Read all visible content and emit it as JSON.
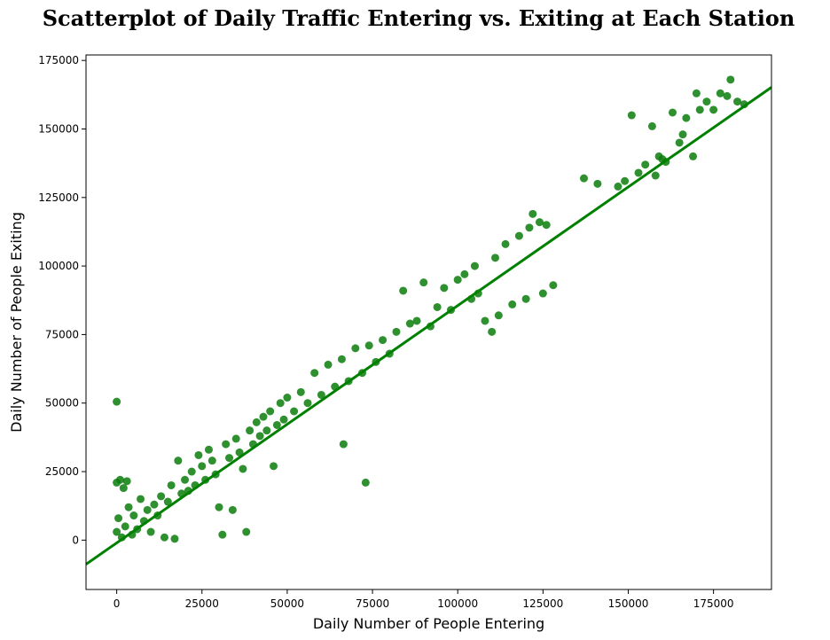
{
  "chart_data": {
    "type": "scatter",
    "title": "Scatterplot of Daily Traffic Entering vs. Exiting at Each Station",
    "xlabel": "Daily Number of People Entering",
    "ylabel": "Daily Number of People Exiting",
    "xlim": [
      -9000,
      192000
    ],
    "ylim": [
      -18000,
      177000
    ],
    "x_ticks": [
      0,
      25000,
      50000,
      75000,
      100000,
      125000,
      150000,
      175000
    ],
    "y_ticks": [
      0,
      25000,
      50000,
      75000,
      100000,
      125000,
      150000,
      175000
    ],
    "grid": false,
    "legend": "none",
    "colors": {
      "points": "#0a7d0a",
      "regression_line": "#008000",
      "axes": "#000000"
    },
    "regression_line": {
      "x": [
        -9000,
        192000
      ],
      "y": [
        -8800,
        165200
      ]
    },
    "series": [
      {
        "values": [
          [
            0,
            50500
          ],
          [
            0,
            21000
          ],
          [
            1000,
            22000
          ],
          [
            2000,
            19000
          ],
          [
            3000,
            21500
          ],
          [
            0,
            3000
          ],
          [
            500,
            8000
          ],
          [
            1500,
            1000
          ],
          [
            2500,
            5000
          ],
          [
            3500,
            12000
          ],
          [
            4500,
            2000
          ],
          [
            5000,
            9000
          ],
          [
            6000,
            4000
          ],
          [
            7000,
            15000
          ],
          [
            8000,
            7000
          ],
          [
            9000,
            11000
          ],
          [
            10000,
            3000
          ],
          [
            11000,
            13000
          ],
          [
            12000,
            9000
          ],
          [
            13000,
            16000
          ],
          [
            14000,
            1000
          ],
          [
            15000,
            14000
          ],
          [
            16000,
            20000
          ],
          [
            17000,
            500
          ],
          [
            18000,
            29000
          ],
          [
            19000,
            17000
          ],
          [
            20000,
            22000
          ],
          [
            21000,
            18000
          ],
          [
            22000,
            25000
          ],
          [
            23000,
            20000
          ],
          [
            24000,
            31000
          ],
          [
            25000,
            27000
          ],
          [
            26000,
            22000
          ],
          [
            27000,
            33000
          ],
          [
            28000,
            29000
          ],
          [
            29000,
            24000
          ],
          [
            30000,
            12000
          ],
          [
            31000,
            2000
          ],
          [
            32000,
            35000
          ],
          [
            33000,
            30000
          ],
          [
            34000,
            11000
          ],
          [
            35000,
            37000
          ],
          [
            36000,
            32000
          ],
          [
            37000,
            26000
          ],
          [
            38000,
            3000
          ],
          [
            39000,
            40000
          ],
          [
            40000,
            35000
          ],
          [
            41000,
            43000
          ],
          [
            42000,
            38000
          ],
          [
            43000,
            45000
          ],
          [
            44000,
            40000
          ],
          [
            45000,
            47000
          ],
          [
            46000,
            27000
          ],
          [
            47000,
            42000
          ],
          [
            48000,
            50000
          ],
          [
            49000,
            44000
          ],
          [
            50000,
            52000
          ],
          [
            52000,
            47000
          ],
          [
            54000,
            54000
          ],
          [
            56000,
            50000
          ],
          [
            58000,
            61000
          ],
          [
            60000,
            53000
          ],
          [
            62000,
            64000
          ],
          [
            64000,
            56000
          ],
          [
            66000,
            66000
          ],
          [
            66500,
            35000
          ],
          [
            68000,
            58000
          ],
          [
            70000,
            70000
          ],
          [
            72000,
            61000
          ],
          [
            73000,
            21000
          ],
          [
            74000,
            71000
          ],
          [
            76000,
            65000
          ],
          [
            78000,
            73000
          ],
          [
            80000,
            68000
          ],
          [
            82000,
            76000
          ],
          [
            84000,
            91000
          ],
          [
            86000,
            79000
          ],
          [
            88000,
            80000
          ],
          [
            90000,
            94000
          ],
          [
            92000,
            78000
          ],
          [
            94000,
            85000
          ],
          [
            96000,
            92000
          ],
          [
            98000,
            84000
          ],
          [
            100000,
            95000
          ],
          [
            102000,
            97000
          ],
          [
            104000,
            88000
          ],
          [
            105000,
            100000
          ],
          [
            106000,
            90000
          ],
          [
            108000,
            80000
          ],
          [
            110000,
            76000
          ],
          [
            111000,
            103000
          ],
          [
            112000,
            82000
          ],
          [
            114000,
            108000
          ],
          [
            116000,
            86000
          ],
          [
            118000,
            111000
          ],
          [
            120000,
            88000
          ],
          [
            121000,
            114000
          ],
          [
            122000,
            119000
          ],
          [
            124000,
            116000
          ],
          [
            125000,
            90000
          ],
          [
            126000,
            115000
          ],
          [
            128000,
            93000
          ],
          [
            137000,
            132000
          ],
          [
            141000,
            130000
          ],
          [
            147000,
            129000
          ],
          [
            149000,
            131000
          ],
          [
            151000,
            155000
          ],
          [
            153000,
            134000
          ],
          [
            155000,
            137000
          ],
          [
            157000,
            151000
          ],
          [
            159000,
            140000
          ],
          [
            161000,
            138000
          ],
          [
            163000,
            156000
          ],
          [
            165000,
            145000
          ],
          [
            167000,
            154000
          ],
          [
            169000,
            140000
          ],
          [
            171000,
            157000
          ],
          [
            173000,
            160000
          ],
          [
            175000,
            157000
          ],
          [
            177000,
            163000
          ],
          [
            179000,
            162000
          ],
          [
            180000,
            168000
          ],
          [
            182000,
            160000
          ],
          [
            184000,
            159000
          ],
          [
            170000,
            163000
          ],
          [
            166000,
            148000
          ],
          [
            160000,
            139000
          ],
          [
            158000,
            133000
          ]
        ]
      }
    ]
  }
}
